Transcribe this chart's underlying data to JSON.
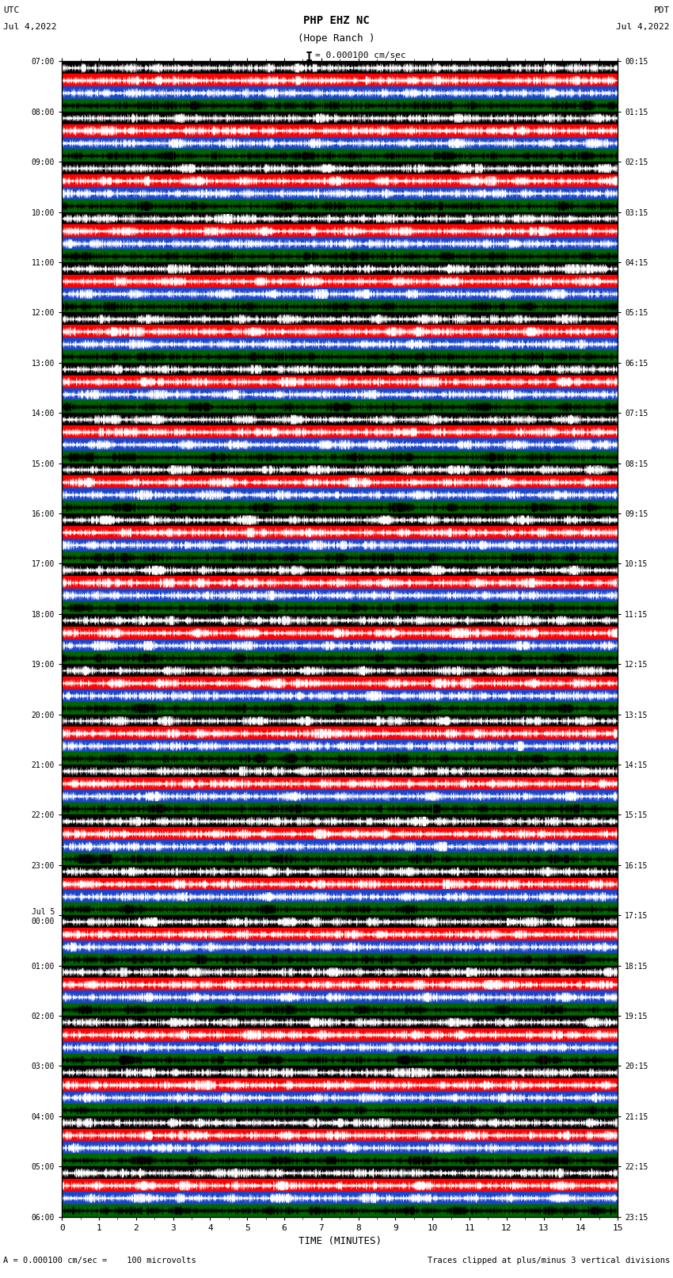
{
  "title_line1": "PHP EHZ NC",
  "title_line2": "(Hope Ranch )",
  "scale_text": "= 0.000100 cm/sec",
  "left_label_top": "UTC",
  "left_label_date": "Jul 4,2022",
  "right_label_top": "PDT",
  "right_label_date": "Jul 4,2022",
  "bottom_xlabel": "TIME (MINUTES)",
  "bottom_note": "A = 0.000100 cm/sec =    100 microvolts",
  "bottom_note2": "Traces clipped at plus/minus 3 vertical divisions",
  "utc_hour_labels": [
    "07:00",
    "08:00",
    "09:00",
    "10:00",
    "11:00",
    "12:00",
    "13:00",
    "14:00",
    "15:00",
    "16:00",
    "17:00",
    "18:00",
    "19:00",
    "20:00",
    "21:00",
    "22:00",
    "23:00",
    "Jul 5\n00:00",
    "01:00",
    "02:00",
    "03:00",
    "04:00",
    "05:00",
    "06:00"
  ],
  "pdt_hour_labels": [
    "00:15",
    "01:15",
    "02:15",
    "03:15",
    "04:15",
    "05:15",
    "06:15",
    "07:15",
    "08:15",
    "09:15",
    "10:15",
    "11:15",
    "12:15",
    "13:15",
    "14:15",
    "15:15",
    "16:15",
    "17:15",
    "18:15",
    "19:15",
    "20:15",
    "21:15",
    "22:15",
    "23:15"
  ],
  "n_hours": 23,
  "traces_per_hour": 4,
  "band_colors": [
    "#000000",
    "#ff0000",
    "#1a44cc",
    "#006600"
  ],
  "trace_line_colors": [
    "#ffffff",
    "#ffffff",
    "#ffffff",
    "#000000"
  ],
  "fig_width": 8.5,
  "fig_height": 16.13,
  "dpi": 100,
  "x_min": 0,
  "x_max": 15,
  "noise_amplitude": 0.38,
  "noise_points": 2700
}
